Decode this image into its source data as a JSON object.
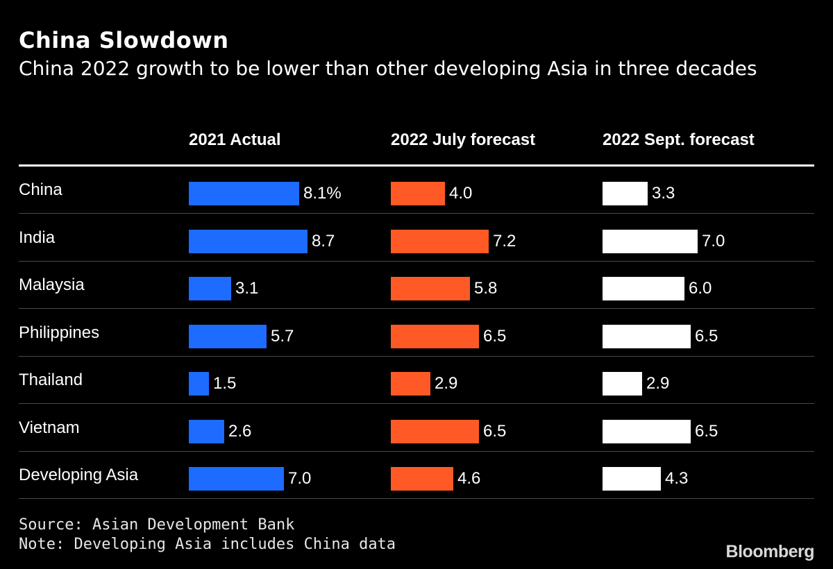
{
  "title": "China Slowdown",
  "subtitle": "China 2022 growth to be lower than other developing Asia in three decades",
  "source": "Source: Asian Development Bank",
  "note": "Note: Developing Asia includes China data",
  "logo": "Bloomberg",
  "colors": {
    "background": "#000000",
    "actual_2021": "#1e6bff",
    "july_2022": "#ff5a26",
    "sept_2022": "#ffffff"
  },
  "chart_data": {
    "type": "table",
    "columns": [
      "2021 Actual",
      "2022 July forecast",
      "2022 Sept. forecast"
    ],
    "rows": [
      {
        "label": "China",
        "values": [
          8.1,
          4.0,
          3.3
        ],
        "display": [
          "8.1%",
          "4.0",
          "3.3"
        ]
      },
      {
        "label": "India",
        "values": [
          8.7,
          7.2,
          7.0
        ],
        "display": [
          "8.7",
          "7.2",
          "7.0"
        ]
      },
      {
        "label": "Malaysia",
        "values": [
          3.1,
          5.8,
          6.0
        ],
        "display": [
          "3.1",
          "5.8",
          "6.0"
        ]
      },
      {
        "label": "Philippines",
        "values": [
          5.7,
          6.5,
          6.5
        ],
        "display": [
          "5.7",
          "6.5",
          "6.5"
        ]
      },
      {
        "label": "Thailand",
        "values": [
          1.5,
          2.9,
          2.9
        ],
        "display": [
          "1.5",
          "2.9",
          "2.9"
        ]
      },
      {
        "label": "Vietnam",
        "values": [
          2.6,
          6.5,
          6.5
        ],
        "display": [
          "2.6",
          "6.5",
          "6.5"
        ]
      },
      {
        "label": "Developing Asia",
        "values": [
          7.0,
          4.6,
          4.3
        ],
        "display": [
          "7.0",
          "4.6",
          "4.3"
        ]
      }
    ]
  }
}
